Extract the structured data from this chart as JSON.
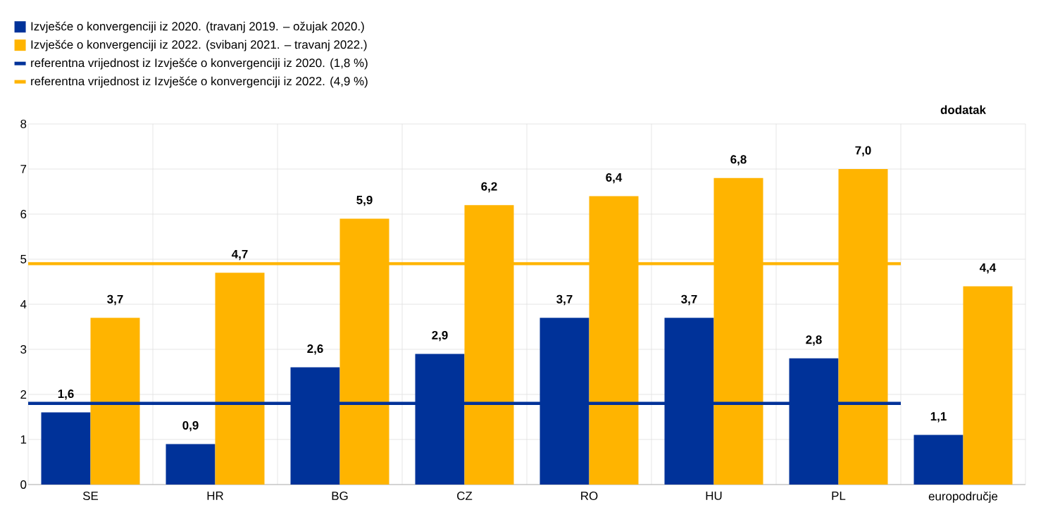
{
  "chart_data": {
    "type": "bar",
    "categories": [
      "SE",
      "HR",
      "BG",
      "CZ",
      "RO",
      "HU",
      "PL",
      "europodručje"
    ],
    "series": [
      {
        "name": "Izvješće o konvergenciji iz 2020. (travanj 2019. – ožujak 2020.)",
        "color": "#003299",
        "values": [
          1.6,
          0.9,
          2.6,
          2.9,
          3.7,
          3.7,
          2.8,
          1.1
        ],
        "value_labels": [
          "1,6",
          "0,9",
          "2,6",
          "2,9",
          "3,7",
          "3,7",
          "2,8",
          "1,1"
        ]
      },
      {
        "name": "Izvješće o konvergenciji iz 2022. (svibanj 2021. – travanj 2022.)",
        "color": "#ffb400",
        "values": [
          3.7,
          4.7,
          5.9,
          6.2,
          6.4,
          6.8,
          7.0,
          4.4
        ],
        "value_labels": [
          "3,7",
          "4,7",
          "5,9",
          "6,2",
          "6,4",
          "6,8",
          "7,0",
          "4,4"
        ]
      }
    ],
    "ref_lines": [
      {
        "axis": "y",
        "value": 1.8,
        "label": "referentna vrijednost iz Izvješće o konvergenciji iz 2020. (1,8 %)",
        "color": "#003299"
      },
      {
        "axis": "y",
        "value": 4.9,
        "label": "referentna vrijednost iz Izvješće o konvergenciji iz 2022. (4,9 %)",
        "color": "#ffb400"
      }
    ],
    "annotations": [
      "dodatak"
    ],
    "ylim": [
      0,
      8
    ],
    "yticks": [
      0,
      1,
      2,
      3,
      4,
      5,
      6,
      7,
      8
    ],
    "grid": true,
    "legend": "top left"
  }
}
